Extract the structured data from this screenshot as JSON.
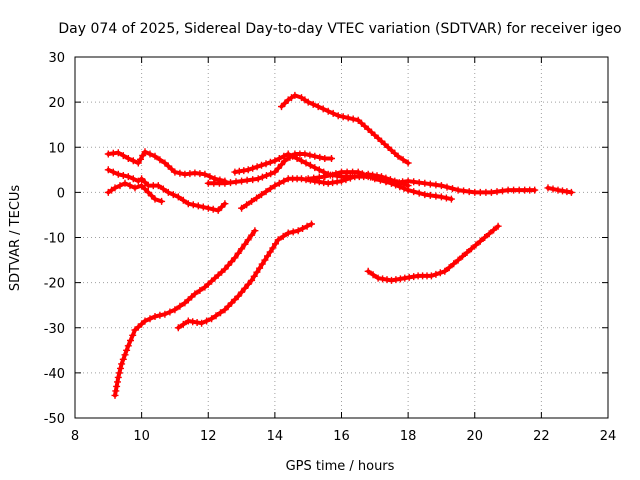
{
  "chart_data": {
    "type": "scatter",
    "title": "Day 074 of 2025, Sidereal Day-to-day VTEC variation (SDTVAR) for receiver igeo",
    "xlabel": "GPS time / hours",
    "ylabel": "SDTVAR / TECUs",
    "xlim": [
      8,
      24
    ],
    "ylim": [
      -50,
      30
    ],
    "xticks": [
      8,
      10,
      12,
      14,
      16,
      18,
      20,
      22,
      24
    ],
    "yticks": [
      -50,
      -40,
      -30,
      -20,
      -10,
      0,
      10,
      20,
      30
    ],
    "grid": true,
    "marker": "+",
    "color": "#ff0000",
    "series": [
      {
        "name": "track-1",
        "x": [
          14.2,
          14.4,
          14.6,
          14.8,
          15.0,
          15.3,
          15.6,
          15.9,
          16.2,
          16.5,
          16.8,
          17.1,
          17.4,
          17.7,
          18.0
        ],
        "y": [
          19,
          20.5,
          21.5,
          21,
          20,
          19,
          18,
          17,
          16.5,
          16,
          14,
          12,
          10,
          8,
          6.5
        ]
      },
      {
        "name": "track-2",
        "x": [
          9.0,
          9.3,
          9.6,
          9.9,
          10.1,
          10.4,
          10.7,
          11.0,
          11.3,
          11.6,
          11.9,
          12.2,
          12.5
        ],
        "y": [
          8.5,
          8.8,
          7.5,
          6.5,
          9,
          8,
          6.5,
          4.5,
          4,
          4.3,
          4,
          3,
          2.5
        ]
      },
      {
        "name": "track-3",
        "x": [
          9.0,
          9.3,
          9.6,
          9.9,
          10.0,
          10.2,
          10.5,
          10.8,
          11.1,
          11.4,
          11.7,
          12.0,
          12.3,
          12.5
        ],
        "y": [
          5,
          4,
          3.5,
          2.5,
          3,
          1.5,
          1.5,
          0,
          -1,
          -2.5,
          -3,
          -3.5,
          -4,
          -2.5
        ]
      },
      {
        "name": "track-4",
        "x": [
          9.0,
          9.2,
          9.5,
          9.8,
          10.0,
          10.2,
          10.4,
          10.6
        ],
        "y": [
          0,
          1,
          2,
          1,
          1.5,
          0,
          -1.5,
          -2
        ]
      },
      {
        "name": "track-5",
        "x": [
          12.0,
          12.5,
          13.0,
          13.5,
          14.0,
          14.3,
          14.6,
          14.9,
          15.2,
          15.5,
          15.7
        ],
        "y": [
          2,
          2,
          2.5,
          3,
          4.5,
          7,
          8.5,
          8.5,
          8,
          7.5,
          7.5
        ]
      },
      {
        "name": "track-6",
        "x": [
          12.8,
          13.2,
          13.6,
          14.0,
          14.4,
          14.8,
          15.2,
          15.6,
          16.0,
          16.4,
          16.8,
          17.2,
          17.5,
          18.0,
          18.5,
          19.0,
          19.3
        ],
        "y": [
          4.5,
          5,
          6,
          7,
          8.5,
          7,
          5.5,
          4,
          3.5,
          3.5,
          3.5,
          3,
          2,
          0.5,
          -0.5,
          -1,
          -1.5
        ]
      },
      {
        "name": "track-7",
        "x": [
          13.0,
          13.3,
          13.6,
          14.0,
          14.4,
          14.8,
          15.2,
          15.6,
          16.0,
          16.4,
          16.8,
          17.2,
          17.6,
          18.0
        ],
        "y": [
          -3.5,
          -2,
          -0.5,
          1.5,
          3,
          3,
          2.5,
          2,
          2.5,
          3.5,
          4,
          3.5,
          2.5,
          1.5
        ]
      },
      {
        "name": "track-8",
        "x": [
          15.0,
          15.5,
          16.0,
          16.5,
          17.0,
          17.5,
          18.0,
          18.5,
          19.0,
          19.5,
          20.0,
          20.5,
          21.0,
          21.5,
          21.8
        ],
        "y": [
          3,
          3.5,
          4.5,
          4.5,
          3,
          2,
          2.5,
          2,
          1.5,
          0.5,
          0,
          0,
          0.5,
          0.5,
          0.5
        ]
      },
      {
        "name": "track-9",
        "x": [
          22.2,
          22.5,
          22.9
        ],
        "y": [
          1,
          0.5,
          0
        ]
      },
      {
        "name": "track-10",
        "x": [
          9.2,
          9.3,
          9.4,
          9.6,
          9.8,
          10.1,
          10.4,
          10.7,
          11.0,
          11.3,
          11.6,
          11.9,
          12.2,
          12.5,
          12.8,
          13.1,
          13.4
        ],
        "y": [
          -45,
          -41,
          -38,
          -34,
          -30.5,
          -28.5,
          -27.5,
          -27,
          -26,
          -24.5,
          -22.5,
          -21,
          -19,
          -17,
          -14.5,
          -11.5,
          -8.5
        ]
      },
      {
        "name": "track-11",
        "x": [
          11.1,
          11.4,
          11.8,
          12.1,
          12.5,
          12.9,
          13.3,
          13.7,
          14.1,
          14.4,
          14.7,
          15.1
        ],
        "y": [
          -30,
          -28.5,
          -29,
          -28,
          -26,
          -23,
          -19.5,
          -15,
          -10.5,
          -9,
          -8.5,
          -7
        ]
      },
      {
        "name": "track-12",
        "x": [
          16.8,
          17.1,
          17.5,
          17.9,
          18.3,
          18.7,
          19.1,
          19.5,
          19.9,
          20.3,
          20.7
        ],
        "y": [
          -17.5,
          -19,
          -19.5,
          -19,
          -18.5,
          -18.5,
          -17.5,
          -15,
          -12.5,
          -10,
          -7.5
        ]
      }
    ]
  }
}
